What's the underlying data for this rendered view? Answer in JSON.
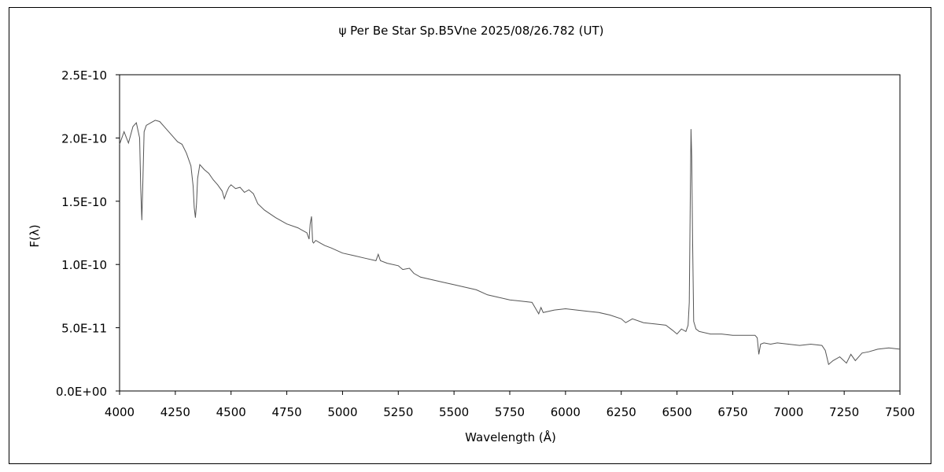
{
  "chart_data": {
    "type": "line",
    "title": "ψ Per Be Star Sp.B5Vne 2025/08/26.782 (UT)",
    "xlabel": "Wavelength (Å)",
    "ylabel": "F(λ)",
    "xlim": [
      4000,
      7500
    ],
    "ylim": [
      0,
      2.5e-10
    ],
    "x_ticks": [
      4000,
      4250,
      4500,
      4750,
      5000,
      5250,
      5500,
      5750,
      6000,
      6250,
      6500,
      6750,
      7000,
      7250,
      7500
    ],
    "x_tick_labels": [
      "4000",
      "4250",
      "4500",
      "4750",
      "5000",
      "5250",
      "5500",
      "5750",
      "6000",
      "6250",
      "6500",
      "6750",
      "7000",
      "7250",
      "7500"
    ],
    "y_ticks": [
      0,
      5e-11,
      1e-10,
      1.5e-10,
      2e-10,
      2.5e-10
    ],
    "y_tick_labels": [
      "0.0E+00",
      "5.0E-11",
      "1.0E-10",
      "1.5E-10",
      "2.0E-10",
      "2.5E-10"
    ],
    "grid": false,
    "legend": "none",
    "series": [
      {
        "color": "#555555",
        "x": [
          4000,
          4020,
          4040,
          4060,
          4075,
          4090,
          4095,
          4100,
          4105,
          4110,
          4120,
          4140,
          4160,
          4180,
          4200,
          4230,
          4260,
          4280,
          4300,
          4320,
          4330,
          4335,
          4340,
          4345,
          4350,
          4360,
          4380,
          4400,
          4420,
          4440,
          4460,
          4470,
          4480,
          4490,
          4500,
          4520,
          4540,
          4560,
          4580,
          4600,
          4620,
          4650,
          4700,
          4750,
          4800,
          4840,
          4850,
          4855,
          4861,
          4866,
          4870,
          4880,
          4900,
          4920,
          4950,
          5000,
          5050,
          5100,
          5150,
          5160,
          5170,
          5200,
          5250,
          5270,
          5300,
          5320,
          5350,
          5400,
          5450,
          5500,
          5550,
          5600,
          5650,
          5700,
          5750,
          5800,
          5850,
          5870,
          5880,
          5890,
          5900,
          5950,
          6000,
          6050,
          6100,
          6150,
          6200,
          6250,
          6270,
          6300,
          6350,
          6400,
          6450,
          6480,
          6500,
          6520,
          6540,
          6550,
          6555,
          6560,
          6563,
          6566,
          6570,
          6575,
          6585,
          6600,
          6650,
          6700,
          6750,
          6800,
          6850,
          6860,
          6867,
          6875,
          6890,
          6920,
          6950,
          7000,
          7050,
          7100,
          7150,
          7165,
          7180,
          7200,
          7230,
          7260,
          7280,
          7300,
          7330,
          7360,
          7400,
          7450,
          7500
        ],
        "y": [
          1.95e-10,
          2.05e-10,
          1.96e-10,
          2.09e-10,
          2.12e-10,
          2e-10,
          1.6e-10,
          1.35e-10,
          1.7e-10,
          2.05e-10,
          2.1e-10,
          2.12e-10,
          2.14e-10,
          2.13e-10,
          2.09e-10,
          2.03e-10,
          1.97e-10,
          1.95e-10,
          1.88e-10,
          1.78e-10,
          1.62e-10,
          1.45e-10,
          1.37e-10,
          1.48e-10,
          1.68e-10,
          1.79e-10,
          1.75e-10,
          1.72e-10,
          1.67e-10,
          1.63e-10,
          1.58e-10,
          1.52e-10,
          1.57e-10,
          1.61e-10,
          1.63e-10,
          1.6e-10,
          1.61e-10,
          1.57e-10,
          1.59e-10,
          1.56e-10,
          1.48e-10,
          1.43e-10,
          1.37e-10,
          1.32e-10,
          1.29e-10,
          1.25e-10,
          1.2e-10,
          1.32e-10,
          1.38e-10,
          1.18e-10,
          1.17e-10,
          1.19e-10,
          1.17e-10,
          1.15e-10,
          1.13e-10,
          1.09e-10,
          1.07e-10,
          1.05e-10,
          1.03e-10,
          1.08e-10,
          1.03e-10,
          1.01e-10,
          9.9e-11,
          9.6e-11,
          9.7e-11,
          9.3e-11,
          9e-11,
          8.8e-11,
          8.6e-11,
          8.4e-11,
          8.2e-11,
          8e-11,
          7.6e-11,
          7.4e-11,
          7.2e-11,
          7.1e-11,
          7e-11,
          6.4e-11,
          6.1e-11,
          6.6e-11,
          6.2e-11,
          6.4e-11,
          6.5e-11,
          6.4e-11,
          6.3e-11,
          6.2e-11,
          6e-11,
          5.7e-11,
          5.4e-11,
          5.7e-11,
          5.4e-11,
          5.3e-11,
          5.2e-11,
          4.8e-11,
          4.5e-11,
          4.9e-11,
          4.7e-11,
          5.2e-11,
          7e-11,
          1.6e-10,
          2.07e-10,
          1.85e-10,
          1.2e-10,
          5.5e-11,
          4.9e-11,
          4.7e-11,
          4.5e-11,
          4.5e-11,
          4.4e-11,
          4.4e-11,
          4.4e-11,
          4.2e-11,
          2.9e-11,
          3.7e-11,
          3.8e-11,
          3.7e-11,
          3.8e-11,
          3.7e-11,
          3.6e-11,
          3.7e-11,
          3.6e-11,
          3.2e-11,
          2.1e-11,
          2.4e-11,
          2.7e-11,
          2.2e-11,
          2.9e-11,
          2.4e-11,
          3e-11,
          3.1e-11,
          3.3e-11,
          3.4e-11,
          3.3e-11
        ]
      }
    ]
  }
}
